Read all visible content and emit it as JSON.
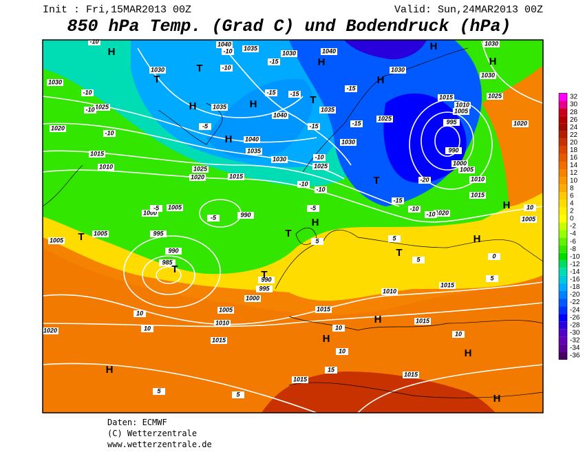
{
  "header": {
    "init": "Init : Fri,15MAR2013 00Z",
    "valid": "Valid: Sun,24MAR2013 00Z",
    "title": "850 hPa Temp. (Grad C) und Bodendruck (hPa)"
  },
  "legend": {
    "values": [
      32,
      30,
      28,
      26,
      24,
      22,
      20,
      18,
      16,
      14,
      12,
      10,
      8,
      6,
      4,
      2,
      0,
      -2,
      -4,
      -6,
      -8,
      -10,
      -12,
      -14,
      -16,
      -18,
      -20,
      -22,
      -24,
      -26,
      -28,
      -30,
      -32,
      -34,
      -36
    ],
    "colors": [
      "#ff00ff",
      "#e6008c",
      "#c8001e",
      "#b40000",
      "#a00a00",
      "#b41e00",
      "#c83200",
      "#dc4600",
      "#e65a00",
      "#f06e00",
      "#f58200",
      "#fa9600",
      "#ffaa00",
      "#ffc800",
      "#ffdc00",
      "#fff000",
      "#ffff00",
      "#c8ff00",
      "#96ff00",
      "#64f000",
      "#32e600",
      "#00dc00",
      "#00dc64",
      "#00dcb4",
      "#00c8dc",
      "#00aaff",
      "#0082ff",
      "#005aff",
      "#0032ff",
      "#0000ff",
      "#2800dc",
      "#5000c8",
      "#6400b4",
      "#5a0096",
      "#460064"
    ]
  },
  "map": {
    "isobar_labels": [
      1030,
      1025,
      1020,
      1015,
      1010,
      1005,
      1000,
      995,
      1005,
      1005,
      990,
      985,
      990,
      995,
      1000,
      1005,
      1010,
      1015,
      1020,
      1015,
      1015,
      1015,
      1010,
      1015,
      1015,
      1020,
      1025,
      1015,
      1030,
      1035,
      1040,
      1035,
      1030,
      1040,
      1035,
      1040,
      1035,
      1030,
      1025,
      1025,
      1030,
      1015,
      1010,
      1005,
      995,
      990,
      1000,
      1005,
      1010,
      1015,
      1020,
      1025,
      1030,
      1030,
      1020,
      1005,
      990,
      1040,
      1030
    ],
    "temperature_labels": [
      -10,
      -10,
      -10,
      -10,
      -10,
      -10,
      -15,
      -15,
      -15,
      -15,
      -15,
      -15,
      -10,
      -10,
      -10,
      -5,
      -15,
      -10,
      -20,
      -10,
      -5,
      -5,
      5,
      5,
      5,
      10,
      10,
      10,
      10,
      10,
      10,
      15,
      5,
      5,
      0,
      5,
      -5
    ],
    "pressure_centers": [
      "H",
      "T",
      "T",
      "H",
      "H",
      "H",
      "H",
      "H",
      "H",
      "H",
      "T",
      "T",
      "H",
      "H",
      "T",
      "T",
      "T",
      "T",
      "T",
      "H",
      "H",
      "H",
      "H",
      "H",
      "H"
    ]
  },
  "footer": {
    "source": "Daten: ECMWF",
    "copyright": "(C) Wetterzentrale",
    "url": "www.wetterzentrale.de"
  }
}
